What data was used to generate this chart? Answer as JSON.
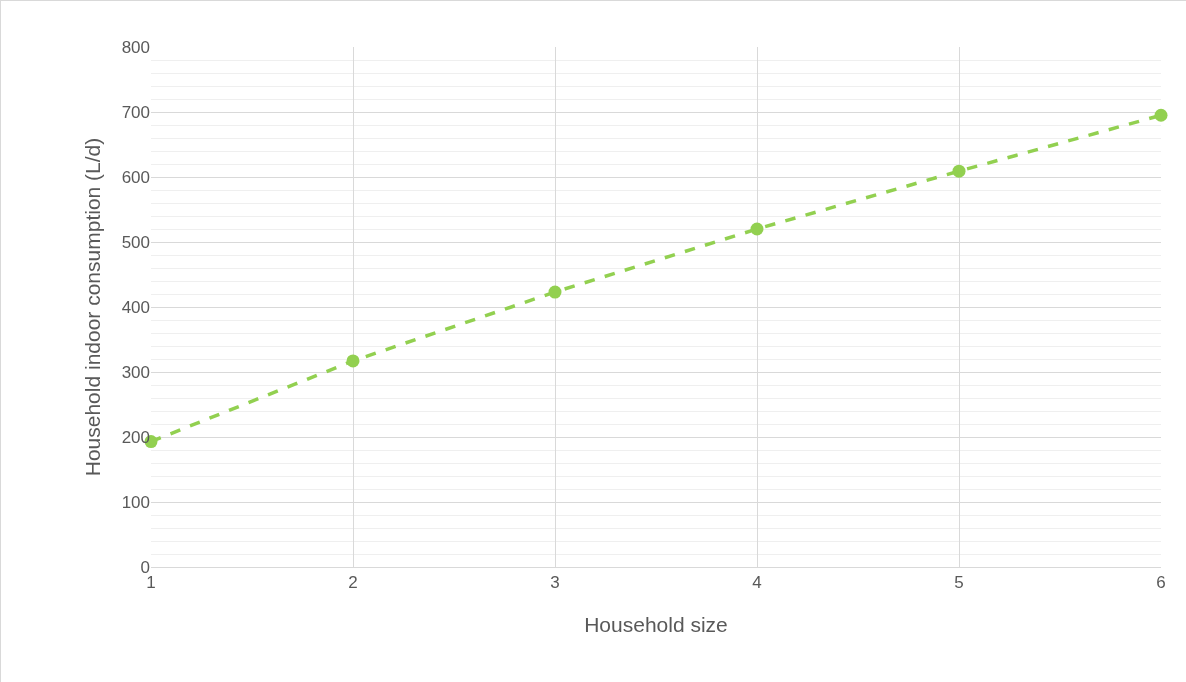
{
  "chart_data": {
    "type": "line",
    "xlabel": "Household size",
    "ylabel": "Household indoor consumption (L/d)",
    "x": [
      1,
      2,
      3,
      4,
      5,
      6
    ],
    "series": [
      {
        "color": "#92d050",
        "values": [
          193,
          317,
          423,
          520,
          609,
          695
        ]
      }
    ],
    "xlim": [
      1,
      6
    ],
    "xticks": [
      1,
      2,
      3,
      4,
      5,
      6
    ],
    "ylim": [
      0,
      800
    ],
    "yticks": [
      0,
      100,
      200,
      300,
      400,
      500,
      600,
      700,
      800
    ],
    "grid": true,
    "marker": "circle",
    "line_style": "dashed"
  }
}
